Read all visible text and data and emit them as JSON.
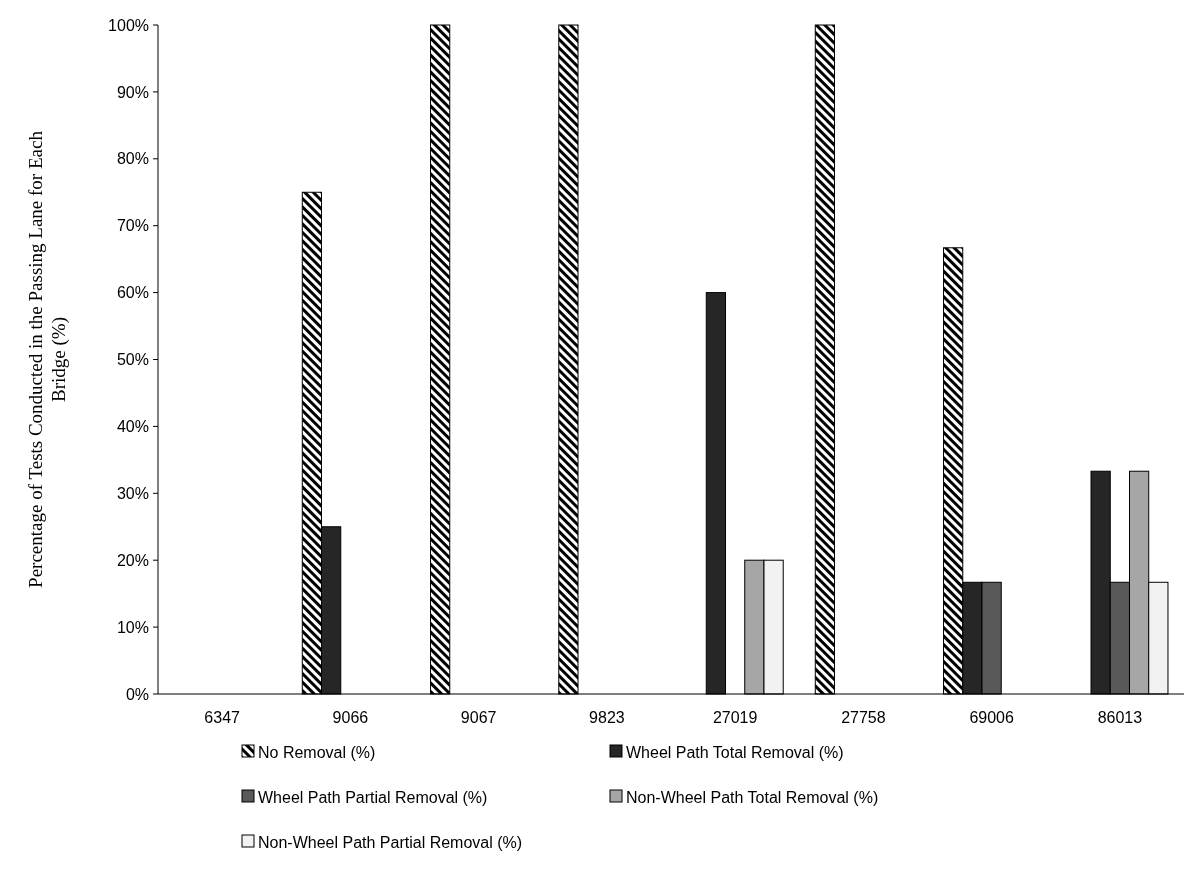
{
  "chart_data": {
    "type": "bar",
    "ylabel": "Percentage of Tests Conducted in the Passing Lane for Each Bridge (%)",
    "categories": [
      "6347",
      "9066",
      "9067",
      "9823",
      "27019",
      "27758",
      "69006",
      "86013"
    ],
    "series": [
      {
        "name": "No Removal (%)",
        "color": "#000000",
        "values": [
          0,
          75,
          100,
          100,
          0,
          100,
          66.7,
          0
        ]
      },
      {
        "name": "Wheel Path Total Removal (%)",
        "color": "#262626",
        "values": [
          0,
          25,
          0,
          0,
          60,
          0,
          16.7,
          33.3
        ]
      },
      {
        "name": "Wheel Path Partial Removal (%)",
        "color": "#595959",
        "values": [
          0,
          0,
          0,
          0,
          0,
          0,
          16.7,
          16.7
        ]
      },
      {
        "name": "Non-Wheel Path Total Removal (%)",
        "color": "#a6a6a6",
        "values": [
          0,
          0,
          0,
          0,
          20,
          0,
          0,
          33.3
        ]
      },
      {
        "name": "Non-Wheel Path Partial  Removal (%)",
        "color": "#f2f2f2",
        "values": [
          0,
          0,
          0,
          0,
          20,
          0,
          0,
          16.7
        ]
      }
    ],
    "ylim": [
      0,
      100
    ],
    "yticks": [
      {
        "value": 0,
        "label": "0%"
      },
      {
        "value": 10,
        "label": "10%"
      },
      {
        "value": 20,
        "label": "20%"
      },
      {
        "value": 30,
        "label": "30%"
      },
      {
        "value": 40,
        "label": "40%"
      },
      {
        "value": 50,
        "label": "50%"
      },
      {
        "value": 60,
        "label": "60%"
      },
      {
        "value": 70,
        "label": "70%"
      },
      {
        "value": 80,
        "label": "80%"
      },
      {
        "value": 90,
        "label": "90%"
      },
      {
        "value": 100,
        "label": "100%"
      }
    ],
    "grid": false,
    "legend": "bottom"
  }
}
